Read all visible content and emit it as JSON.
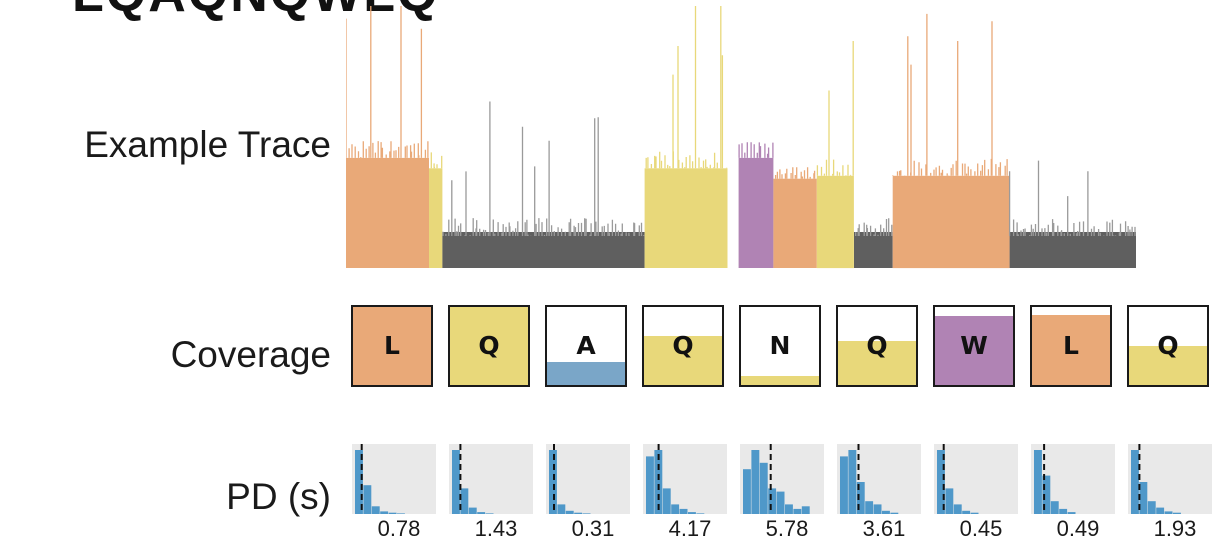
{
  "header": {
    "title": "LQAQNQWLQ"
  },
  "labels": {
    "trace": "Example Trace",
    "coverage": "Coverage",
    "pd": "PD (s)"
  },
  "colors": {
    "L": "#e9a978",
    "Q": "#e8d87a",
    "A": "#7aa6c8",
    "N": "#e8d87a",
    "W": "#b083b4",
    "baseline": "#5f5f5f",
    "hist": "#4f98c9",
    "hist_bg": "#e9e9e9"
  },
  "residues": [
    {
      "letter": "L",
      "coverage": 1.0,
      "pd": "0.78"
    },
    {
      "letter": "Q",
      "coverage": 1.0,
      "pd": "1.43"
    },
    {
      "letter": "A",
      "coverage": 0.3,
      "pd": "0.31"
    },
    {
      "letter": "Q",
      "coverage": 0.63,
      "pd": "4.17"
    },
    {
      "letter": "N",
      "coverage": 0.12,
      "pd": "5.78"
    },
    {
      "letter": "Q",
      "coverage": 0.56,
      "pd": "3.61"
    },
    {
      "letter": "W",
      "coverage": 0.88,
      "pd": "0.45"
    },
    {
      "letter": "L",
      "coverage": 0.9,
      "pd": "0.49"
    },
    {
      "letter": "Q",
      "coverage": 0.5,
      "pd": "1.93"
    }
  ],
  "trace": {
    "segments": [
      {
        "residue": "L",
        "start": 0.0,
        "end": 0.105,
        "level": 0.62,
        "spike": 0.9
      },
      {
        "residue": "Q",
        "start": 0.105,
        "end": 0.122,
        "level": 0.55,
        "spike": 0.55
      },
      {
        "residue": "baseline",
        "start": 0.122,
        "end": 0.378,
        "level": 0.12,
        "spike": 0.5
      },
      {
        "residue": "Q",
        "start": 0.378,
        "end": 0.483,
        "level": 0.55,
        "spike": 0.8
      },
      {
        "residue": "W",
        "start": 0.497,
        "end": 0.541,
        "level": 0.62,
        "spike": 1.0
      },
      {
        "residue": "L",
        "start": 0.541,
        "end": 0.596,
        "level": 0.48,
        "spike": 0.7
      },
      {
        "residue": "Q",
        "start": 0.596,
        "end": 0.643,
        "level": 0.5,
        "spike": 0.55
      },
      {
        "residue": "baseline",
        "start": 0.643,
        "end": 0.692,
        "level": 0.12,
        "spike": 0.3
      },
      {
        "residue": "L",
        "start": 0.692,
        "end": 0.84,
        "level": 0.5,
        "spike": 0.6
      },
      {
        "residue": "baseline",
        "start": 0.84,
        "end": 1.0,
        "level": 0.12,
        "spike": 0.3
      }
    ]
  },
  "pd_hist": [
    {
      "bars": [
        1.0,
        0.45,
        0.12,
        0.04,
        0.02,
        0.01,
        0.0,
        0.0
      ],
      "mark": 0.08
    },
    {
      "bars": [
        1.0,
        0.4,
        0.1,
        0.03,
        0.01,
        0.0,
        0.0,
        0.0
      ],
      "mark": 0.1
    },
    {
      "bars": [
        1.0,
        0.15,
        0.05,
        0.02,
        0.01,
        0.0,
        0.0,
        0.0
      ],
      "mark": 0.06
    },
    {
      "bars": [
        0.9,
        1.0,
        0.4,
        0.15,
        0.08,
        0.03,
        0.01,
        0.0
      ],
      "mark": 0.15
    },
    {
      "bars": [
        0.7,
        1.0,
        0.8,
        0.4,
        0.35,
        0.15,
        0.08,
        0.12
      ],
      "mark": 0.33
    },
    {
      "bars": [
        0.9,
        1.0,
        0.5,
        0.2,
        0.15,
        0.05,
        0.02,
        0.0
      ],
      "mark": 0.22
    },
    {
      "bars": [
        1.0,
        0.4,
        0.15,
        0.05,
        0.02,
        0.0,
        0.0,
        0.0
      ],
      "mark": 0.08
    },
    {
      "bars": [
        1.0,
        0.6,
        0.2,
        0.08,
        0.03,
        0.0,
        0.0,
        0.0
      ],
      "mark": 0.12
    },
    {
      "bars": [
        1.0,
        0.5,
        0.2,
        0.1,
        0.04,
        0.02,
        0.0,
        0.0
      ],
      "mark": 0.1
    }
  ]
}
